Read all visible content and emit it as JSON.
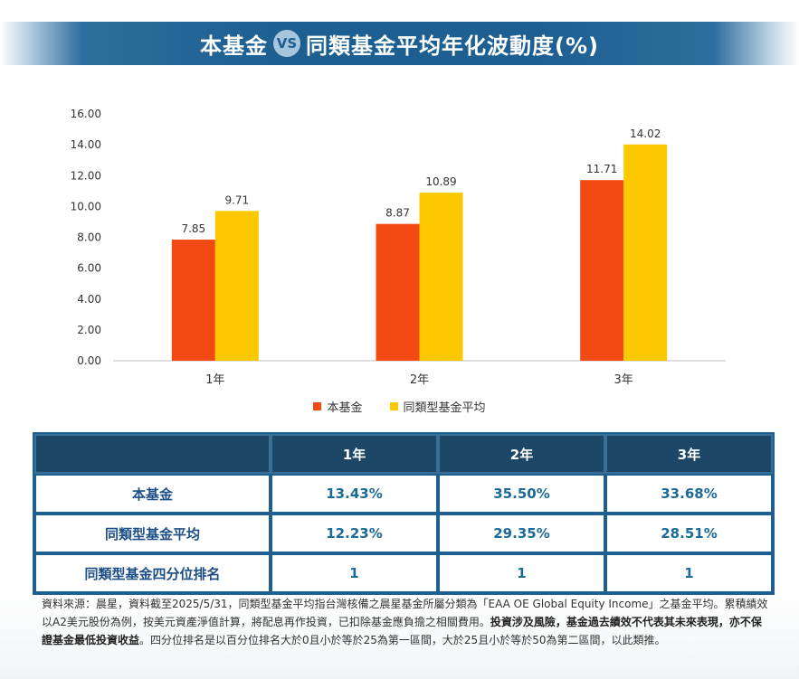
{
  "title": {
    "left": "本基金",
    "vs": "VS",
    "right": "同類基金平均年化波動度(%)"
  },
  "chart_data": {
    "type": "bar",
    "categories": [
      "1年",
      "2年",
      "3年"
    ],
    "series": [
      {
        "name": "本基金",
        "values": [
          7.85,
          8.87,
          11.71
        ],
        "color": "#f24a12"
      },
      {
        "name": "同類型基金平均",
        "values": [
          9.71,
          10.89,
          14.02
        ],
        "color": "#fcc800"
      }
    ],
    "ylim": [
      0,
      16
    ],
    "yticks": [
      "0.00",
      "2.00",
      "4.00",
      "6.00",
      "8.00",
      "10.00",
      "12.00",
      "14.00",
      "16.00"
    ],
    "data_labels": [
      [
        "7.85",
        "8.87",
        "11.71"
      ],
      [
        "9.71",
        "10.89",
        "14.02"
      ]
    ],
    "legend_position": "bottom",
    "grid": false
  },
  "legend": [
    {
      "label": "本基金",
      "color": "#f24a12"
    },
    {
      "label": "同類型基金平均",
      "color": "#fcc800"
    }
  ],
  "table": {
    "headers": [
      "",
      "1年",
      "2年",
      "3年"
    ],
    "rows": [
      {
        "label": "本基金",
        "values": [
          "13.43%",
          "35.50%",
          "33.68%"
        ]
      },
      {
        "label": "同類型基金平均",
        "values": [
          "12.23%",
          "29.35%",
          "28.51%"
        ]
      },
      {
        "label": "同類型基金四分位排名",
        "values": [
          "1",
          "1",
          "1"
        ]
      }
    ]
  },
  "footnote": {
    "part1": "資料來源：晨星，資料截至2025/5/31，同類型基金平均指台灣核備之晨星基金所屬分類為「EAA OE Global Equity Income」之基金平均。累積績效以A2美元股份為例，按美元資產淨值計算，將配息再作投資，已扣除基金應負擔之相關費用。",
    "bold1": "投資涉及風險，基金過去績效不代表其未來表現，亦不保證基金最低投資收益",
    "part2": "。四分位排名是以百分位排名大於0且小於等於25為第一區間，大於25且小於等於50為第二區間，以此類推。"
  },
  "colors": {
    "brand": "#1d5f91",
    "header_dark": "#1d4766"
  }
}
